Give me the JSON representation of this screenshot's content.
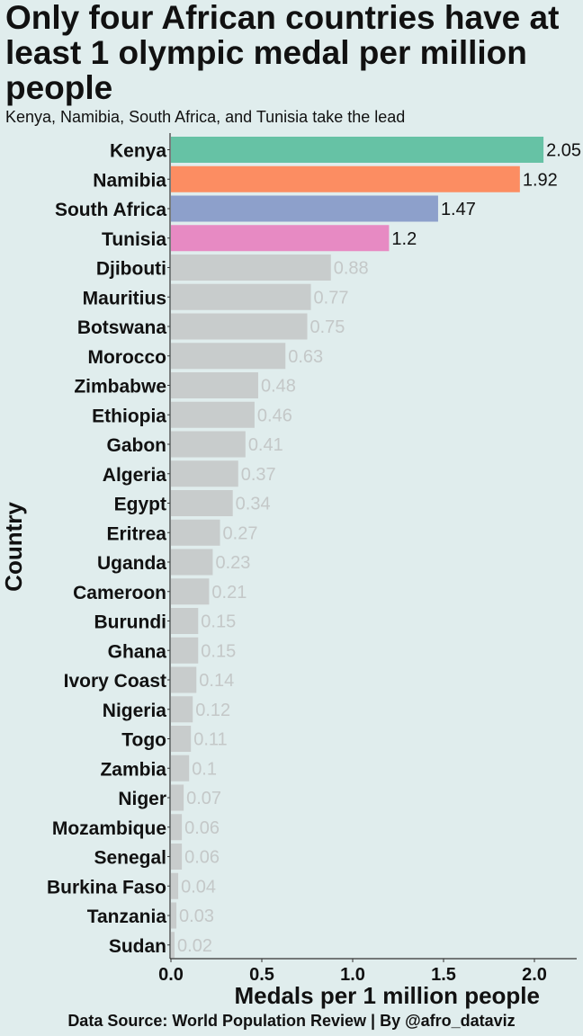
{
  "chart_data": {
    "type": "bar",
    "orientation": "horizontal",
    "title": "Only four African countries have at least 1 olympic medal per million people",
    "subtitle": "Kenya, Namibia, South Africa, and Tunisia take the lead",
    "xlabel": "Medals per 1 million people",
    "ylabel": "Country",
    "caption": "Data Source: World Population Review | By @afro_dataviz",
    "xlim": [
      0,
      2.3
    ],
    "xticks": [
      "0.0",
      "0.5",
      "1.0",
      "1.5",
      "2.0"
    ],
    "categories": [
      "Kenya",
      "Namibia",
      "South Africa",
      "Tunisia",
      "Djibouti",
      "Mauritius",
      "Botswana",
      "Morocco",
      "Zimbabwe",
      "Ethiopia",
      "Gabon",
      "Algeria",
      "Egypt",
      "Eritrea",
      "Uganda",
      "Cameroon",
      "Burundi",
      "Ghana",
      "Ivory Coast",
      "Nigeria",
      "Togo",
      "Zambia",
      "Niger",
      "Mozambique",
      "Senegal",
      "Burkina Faso",
      "Tanzania",
      "Sudan"
    ],
    "values": [
      2.05,
      1.92,
      1.47,
      1.2,
      0.88,
      0.77,
      0.75,
      0.63,
      0.48,
      0.46,
      0.41,
      0.37,
      0.34,
      0.27,
      0.23,
      0.21,
      0.15,
      0.15,
      0.14,
      0.12,
      0.11,
      0.1,
      0.07,
      0.06,
      0.06,
      0.04,
      0.03,
      0.02
    ],
    "value_labels": [
      "2.05",
      "1.92",
      "1.47",
      "1.2",
      "0.88",
      "0.77",
      "0.75",
      "0.63",
      "0.48",
      "0.46",
      "0.41",
      "0.37",
      "0.34",
      "0.27",
      "0.23",
      "0.21",
      "0.15",
      "0.15",
      "0.14",
      "0.12",
      "0.11",
      "0.1",
      "0.07",
      "0.06",
      "0.06",
      "0.04",
      "0.03",
      "0.02"
    ],
    "highlight_colors": [
      "#66c2a5",
      "#fc8d62",
      "#8da0cb",
      "#e78ac3"
    ],
    "default_color": "#c8cccc",
    "highlight_label_color": "#111111",
    "default_label_color": "#c4c8c8",
    "background": "#e0eded",
    "grid": false,
    "legend": "none"
  }
}
